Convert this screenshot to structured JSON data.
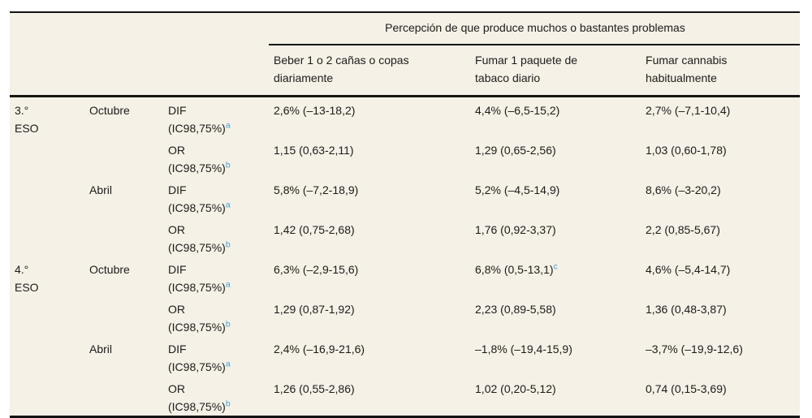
{
  "table": {
    "spanner": "Percepción de que produce muchos o bastantes problemas",
    "col_headers": [
      [
        "Beber 1 o 2 cañas o copas",
        "diariamente"
      ],
      [
        "Fumar 1 paquete de",
        "tabaco diario"
      ],
      [
        "Fumar cannabis",
        "habitualmente"
      ]
    ],
    "ic_label": "(IC98,75%)",
    "rows": [
      {
        "grade1": "3.°",
        "grade2": "ESO",
        "month": "Octubre",
        "measure": "DIF",
        "sup": "a",
        "v1": "2,6% (–13-18,2)",
        "v2": "4,4% (–6,5-15,2)",
        "v3": "2,7% (–7,1-10,4)"
      },
      {
        "measure": "OR",
        "sup": "b",
        "v1": "1,15 (0,63-2,11)",
        "v2": "1,29 (0,65-2,56)",
        "v3": "1,03 (0,60-1,78)"
      },
      {
        "month": "Abril",
        "measure": "DIF",
        "sup": "a",
        "v1": "5,8% (–7,2-18,9)",
        "v2": "5,2% (–4,5-14,9)",
        "v3": "8,6% (–3-20,2)"
      },
      {
        "measure": "OR",
        "sup": "b",
        "v1": "1,42 (0,75-2,68)",
        "v2": "1,76 (0,92-3,37)",
        "v3": "2,2 (0,85-5,67)"
      },
      {
        "grade1": "4.°",
        "grade2": "ESO",
        "month": "Octubre",
        "measure": "DIF",
        "sup": "a",
        "v1": "6,3% (–2,9-15,6)",
        "v2": "6,8% (0,5-13,1)",
        "v2sup": "c",
        "v3": "4,6% (–5,4-14,7)"
      },
      {
        "measure": "OR",
        "sup": "b",
        "v1": "1,29 (0,87-1,92)",
        "v2": "2,23 (0,89-5,58)",
        "v3": "1,36 (0,48-3,87)"
      },
      {
        "month": "Abril",
        "measure": "DIF",
        "sup": "a",
        "v1": "2,4% (–16,9-21,6)",
        "v2": "–1,8% (–19,4-15,9)",
        "v3": "–3,7% (–19,9-12,6)"
      },
      {
        "measure": "OR",
        "sup": "b",
        "v1": "1,26 (0,55-2,86)",
        "v2": "1,02 (0,20-5,12)",
        "v3": "0,74 (0,15-3,69)"
      }
    ],
    "colors": {
      "table_background": "#f5f1e6",
      "rule": "#141414",
      "footnote_blue": "#3fa3d9"
    }
  }
}
